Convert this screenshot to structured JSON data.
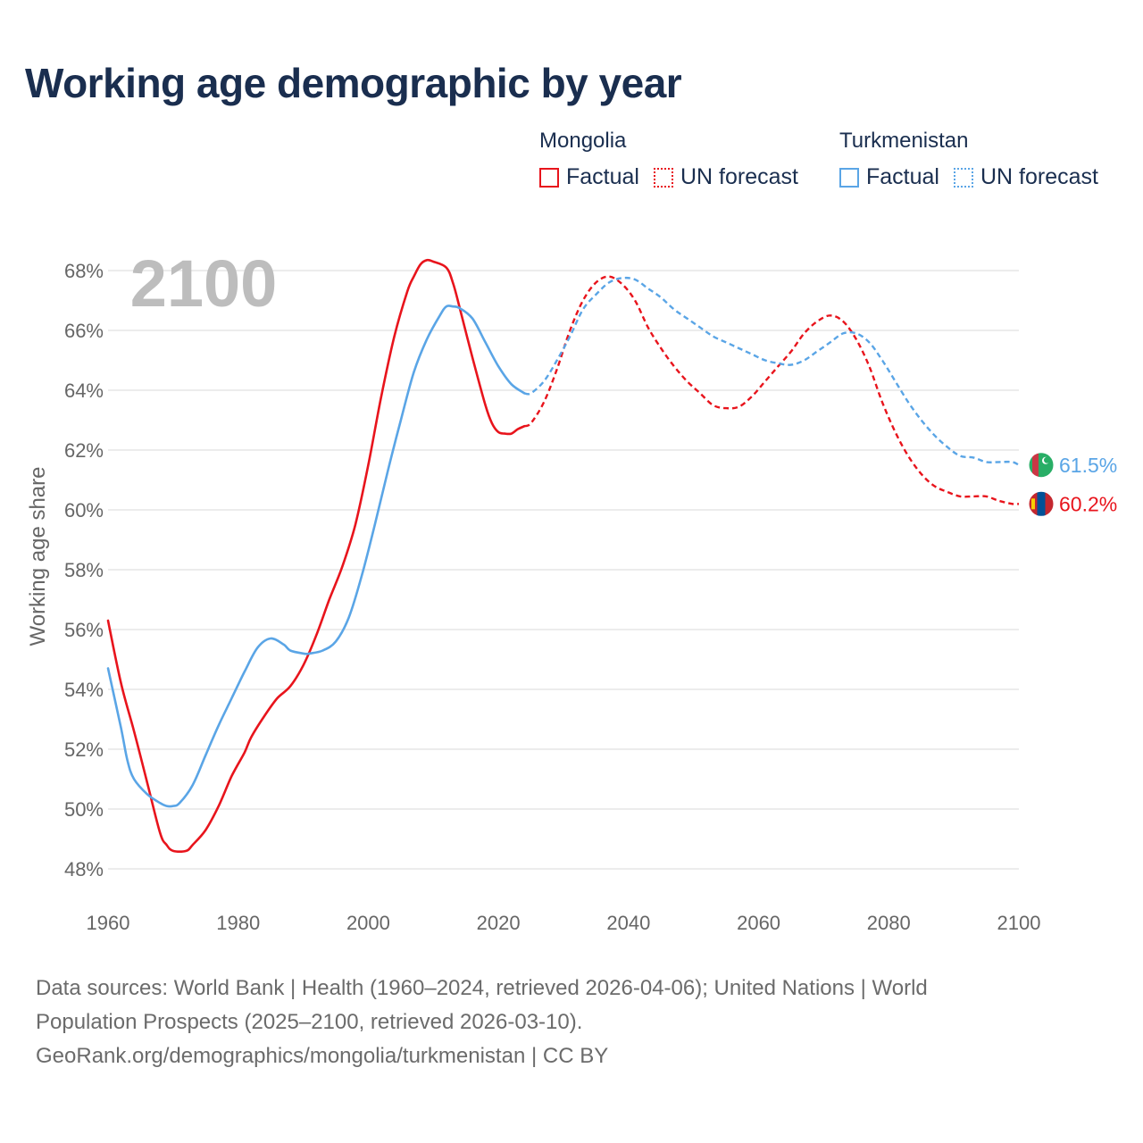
{
  "title": "Working age demographic by year",
  "legend": {
    "groups": [
      {
        "country": "Mongolia",
        "factual_label": "Factual",
        "forecast_label": "UN forecast",
        "color": "#e8141c"
      },
      {
        "country": "Turkmenistan",
        "factual_label": "Factual",
        "forecast_label": "UN forecast",
        "color": "#5aa5e6"
      }
    ]
  },
  "year_overlay": "2100",
  "source": {
    "line1": "Data sources: World Bank | Health (1960–2024, retrieved 2026-04-06); United Nations | World",
    "line2": "Population Prospects (2025–2100, retrieved 2026-03-10).",
    "line3": "GeoRank.org/demographics/mongolia/turkmenistan | CC BY"
  },
  "chart_data": {
    "type": "line",
    "title": "Working age demographic by year",
    "xlabel": "",
    "ylabel": "Working age share",
    "xlim": [
      1960,
      2100
    ],
    "ylim": [
      47,
      69
    ],
    "x_ticks": [
      1960,
      1980,
      2000,
      2020,
      2040,
      2060,
      2080,
      2100
    ],
    "y_ticks": [
      48,
      50,
      52,
      54,
      56,
      58,
      60,
      62,
      64,
      66,
      68
    ],
    "y_tick_labels": [
      "48%",
      "50%",
      "52%",
      "54%",
      "56%",
      "58%",
      "60%",
      "62%",
      "64%",
      "66%",
      "68%"
    ],
    "x_tick_labels": [
      "1960",
      "1980",
      "2000",
      "2020",
      "2040",
      "2060",
      "2080",
      "2100"
    ],
    "grid": true,
    "factual_end_year": 2024,
    "series": [
      {
        "name": "Mongolia",
        "color": "#e8141c",
        "end_label": "60.2%",
        "flag": "mongolia-flag",
        "points": [
          [
            1960,
            56.3
          ],
          [
            1962,
            54.2
          ],
          [
            1964,
            52.6
          ],
          [
            1966,
            50.9
          ],
          [
            1968,
            49.2
          ],
          [
            1969,
            48.8
          ],
          [
            1970,
            48.6
          ],
          [
            1972,
            48.6
          ],
          [
            1973,
            48.8
          ],
          [
            1975,
            49.3
          ],
          [
            1977,
            50.1
          ],
          [
            1979,
            51.1
          ],
          [
            1981,
            51.9
          ],
          [
            1982,
            52.4
          ],
          [
            1984,
            53.1
          ],
          [
            1986,
            53.7
          ],
          [
            1988,
            54.1
          ],
          [
            1990,
            54.8
          ],
          [
            1992,
            55.8
          ],
          [
            1994,
            57.0
          ],
          [
            1996,
            58.1
          ],
          [
            1998,
            59.5
          ],
          [
            2000,
            61.5
          ],
          [
            2002,
            63.8
          ],
          [
            2004,
            65.8
          ],
          [
            2006,
            67.3
          ],
          [
            2007,
            67.8
          ],
          [
            2008,
            68.2
          ],
          [
            2009,
            68.35
          ],
          [
            2010,
            68.3
          ],
          [
            2012,
            68.1
          ],
          [
            2013,
            67.6
          ],
          [
            2014,
            66.8
          ],
          [
            2016,
            65.1
          ],
          [
            2018,
            63.5
          ],
          [
            2019,
            62.9
          ],
          [
            2020,
            62.6
          ],
          [
            2021,
            62.55
          ],
          [
            2022,
            62.55
          ],
          [
            2023,
            62.7
          ],
          [
            2024,
            62.8
          ],
          [
            2025,
            62.9
          ],
          [
            2027,
            63.6
          ],
          [
            2029,
            64.7
          ],
          [
            2031,
            66.0
          ],
          [
            2033,
            67.0
          ],
          [
            2035,
            67.6
          ],
          [
            2037,
            67.8
          ],
          [
            2039,
            67.55
          ],
          [
            2041,
            67.0
          ],
          [
            2043,
            66.1
          ],
          [
            2045,
            65.4
          ],
          [
            2047,
            64.8
          ],
          [
            2049,
            64.3
          ],
          [
            2051,
            63.9
          ],
          [
            2053,
            63.5
          ],
          [
            2055,
            63.4
          ],
          [
            2057,
            63.45
          ],
          [
            2059,
            63.8
          ],
          [
            2061,
            64.3
          ],
          [
            2063,
            64.8
          ],
          [
            2065,
            65.3
          ],
          [
            2067,
            65.9
          ],
          [
            2069,
            66.3
          ],
          [
            2071,
            66.5
          ],
          [
            2073,
            66.3
          ],
          [
            2075,
            65.7
          ],
          [
            2077,
            64.8
          ],
          [
            2079,
            63.6
          ],
          [
            2081,
            62.6
          ],
          [
            2083,
            61.8
          ],
          [
            2085,
            61.2
          ],
          [
            2087,
            60.8
          ],
          [
            2089,
            60.6
          ],
          [
            2091,
            60.45
          ],
          [
            2093,
            60.45
          ],
          [
            2095,
            60.45
          ],
          [
            2097,
            60.3
          ],
          [
            2099,
            60.2
          ],
          [
            2100,
            60.2
          ]
        ]
      },
      {
        "name": "Turkmenistan",
        "color": "#5aa5e6",
        "end_label": "61.5%",
        "flag": "turkmenistan-flag",
        "points": [
          [
            1960,
            54.7
          ],
          [
            1962,
            52.7
          ],
          [
            1963,
            51.6
          ],
          [
            1964,
            51.0
          ],
          [
            1966,
            50.5
          ],
          [
            1968,
            50.2
          ],
          [
            1969,
            50.1
          ],
          [
            1970,
            50.1
          ],
          [
            1971,
            50.2
          ],
          [
            1973,
            50.8
          ],
          [
            1975,
            51.8
          ],
          [
            1977,
            52.8
          ],
          [
            1979,
            53.7
          ],
          [
            1981,
            54.6
          ],
          [
            1983,
            55.4
          ],
          [
            1985,
            55.7
          ],
          [
            1987,
            55.5
          ],
          [
            1988,
            55.3
          ],
          [
            1990,
            55.2
          ],
          [
            1991,
            55.2
          ],
          [
            1993,
            55.3
          ],
          [
            1995,
            55.6
          ],
          [
            1997,
            56.4
          ],
          [
            1999,
            57.8
          ],
          [
            2001,
            59.5
          ],
          [
            2003,
            61.3
          ],
          [
            2005,
            63.0
          ],
          [
            2007,
            64.6
          ],
          [
            2009,
            65.7
          ],
          [
            2011,
            66.5
          ],
          [
            2012,
            66.8
          ],
          [
            2013,
            66.8
          ],
          [
            2014,
            66.75
          ],
          [
            2016,
            66.4
          ],
          [
            2018,
            65.6
          ],
          [
            2020,
            64.8
          ],
          [
            2022,
            64.2
          ],
          [
            2024,
            63.9
          ],
          [
            2025,
            63.9
          ],
          [
            2027,
            64.3
          ],
          [
            2029,
            65.0
          ],
          [
            2031,
            65.8
          ],
          [
            2033,
            66.7
          ],
          [
            2035,
            67.2
          ],
          [
            2037,
            67.6
          ],
          [
            2039,
            67.75
          ],
          [
            2041,
            67.7
          ],
          [
            2043,
            67.4
          ],
          [
            2045,
            67.1
          ],
          [
            2047,
            66.7
          ],
          [
            2049,
            66.4
          ],
          [
            2051,
            66.1
          ],
          [
            2053,
            65.8
          ],
          [
            2055,
            65.6
          ],
          [
            2057,
            65.4
          ],
          [
            2059,
            65.2
          ],
          [
            2061,
            65.0
          ],
          [
            2063,
            64.9
          ],
          [
            2065,
            64.85
          ],
          [
            2067,
            65.0
          ],
          [
            2069,
            65.3
          ],
          [
            2071,
            65.6
          ],
          [
            2073,
            65.9
          ],
          [
            2075,
            65.9
          ],
          [
            2077,
            65.6
          ],
          [
            2079,
            65.0
          ],
          [
            2081,
            64.3
          ],
          [
            2083,
            63.6
          ],
          [
            2085,
            63.0
          ],
          [
            2087,
            62.5
          ],
          [
            2089,
            62.1
          ],
          [
            2091,
            61.8
          ],
          [
            2093,
            61.75
          ],
          [
            2095,
            61.6
          ],
          [
            2097,
            61.6
          ],
          [
            2099,
            61.6
          ],
          [
            2100,
            61.5
          ]
        ]
      }
    ]
  }
}
